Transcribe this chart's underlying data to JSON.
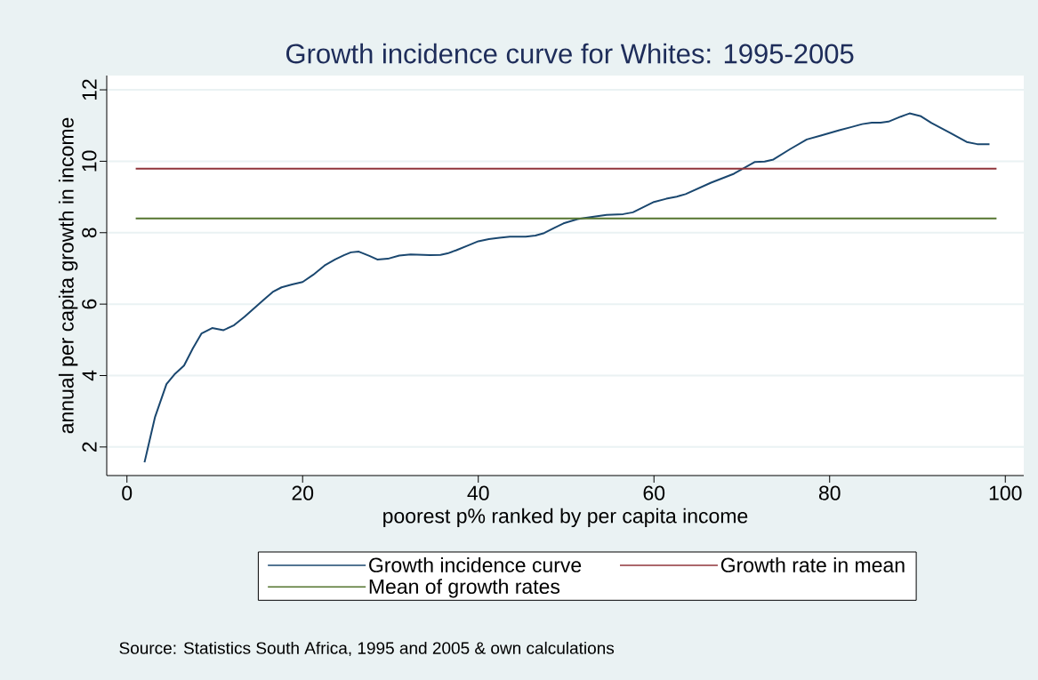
{
  "chart_data": {
    "type": "line",
    "title": "Growth incidence curve for Whites: 1995-2005",
    "xlabel": "poorest p% ranked by per capita income",
    "ylabel": "annual per capita growth in income",
    "annotations": [
      "Source: Statistics South Africa, 1995 and 2005 & own calculations"
    ],
    "series": [
      {
        "name": "Growth incidence curve",
        "color": "#1a476f",
        "x": [
          2.0,
          3.2,
          4.5,
          5.4,
          6.5,
          7.5,
          8.5,
          9.7,
          11.0,
          12.2,
          13.4,
          14.6,
          15.6,
          16.6,
          17.6,
          18.8,
          20.0,
          21.2,
          22.5,
          23.7,
          24.7,
          25.5,
          26.4,
          27.6,
          28.5,
          29.7,
          31.0,
          32.3,
          34.5,
          35.7,
          36.5,
          37.5,
          38.9,
          40.0,
          41.2,
          42.4,
          43.6,
          45.4,
          46.5,
          47.5,
          48.6,
          49.7,
          51.3,
          52.1,
          54.6,
          56.5,
          57.6,
          60.0,
          61.4,
          62.6,
          63.6,
          66.5,
          69.1,
          71.5,
          72.6,
          73.6,
          75.5,
          77.4,
          79.0,
          81.1,
          82.5,
          83.7,
          84.8,
          85.8,
          86.7,
          88.1,
          89.1,
          90.4,
          91.6,
          93.7,
          95.6,
          96.8,
          98.2
        ],
        "values": [
          1.57,
          2.84,
          3.76,
          4.03,
          4.28,
          4.76,
          5.18,
          5.33,
          5.27,
          5.41,
          5.65,
          5.91,
          6.13,
          6.34,
          6.47,
          6.55,
          6.62,
          6.82,
          7.08,
          7.25,
          7.37,
          7.45,
          7.47,
          7.35,
          7.25,
          7.27,
          7.36,
          7.39,
          7.37,
          7.38,
          7.42,
          7.51,
          7.65,
          7.76,
          7.82,
          7.86,
          7.89,
          7.89,
          7.92,
          7.99,
          8.13,
          8.26,
          8.38,
          8.41,
          8.5,
          8.52,
          8.57,
          8.86,
          8.95,
          9.01,
          9.08,
          9.4,
          9.65,
          9.98,
          9.99,
          10.05,
          10.34,
          10.61,
          10.72,
          10.87,
          10.96,
          11.04,
          11.08,
          11.08,
          11.11,
          11.25,
          11.34,
          11.26,
          11.07,
          10.8,
          10.54,
          10.48,
          10.48
        ]
      },
      {
        "name": "Growth rate in mean",
        "color": "#90353b",
        "x": [
          1,
          99
        ],
        "values": [
          9.79,
          9.79
        ]
      },
      {
        "name": "Mean of growth rates",
        "color": "#55752f",
        "x": [
          1,
          99
        ],
        "values": [
          8.4,
          8.4
        ]
      }
    ],
    "xlim": [
      -2.3,
      102.1
    ],
    "ylim": [
      1.2,
      12.4
    ],
    "xticks": [
      0,
      20,
      40,
      60,
      80,
      100
    ],
    "yticks": [
      2,
      4,
      6,
      8,
      10,
      12
    ],
    "grid": "y",
    "legend": "bottom"
  }
}
